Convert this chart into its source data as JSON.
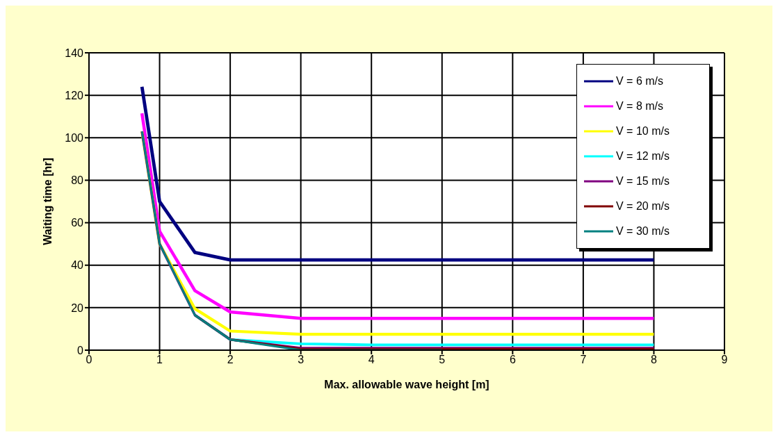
{
  "chart_data": {
    "type": "line",
    "xlabel": "Max. allowable wave height [m]",
    "ylabel": "Waiting time [hr]",
    "x": [
      0.75,
      1,
      1.5,
      2,
      3,
      4,
      5,
      6,
      7,
      8
    ],
    "series": [
      {
        "name": "V = 6 m/s",
        "color": "#000080",
        "values": [
          124,
          70,
          46,
          42.5,
          42.5,
          42.5,
          42.5,
          42.5,
          42.5,
          42.5
        ]
      },
      {
        "name": "V = 8 m/s",
        "color": "#ff00ff",
        "values": [
          111.5,
          56,
          28,
          18,
          15,
          15,
          15,
          15,
          15,
          15
        ]
      },
      {
        "name": "V = 10 m/s",
        "color": "#ffff00",
        "values": [
          103,
          50,
          19.5,
          9,
          7.5,
          7.5,
          7.5,
          7.5,
          7.5,
          7.5
        ]
      },
      {
        "name": "V = 12 m/s",
        "color": "#00ffff",
        "values": [
          null,
          null,
          16.5,
          5,
          3,
          2.5,
          2.5,
          2.5,
          2.5,
          2.5
        ]
      },
      {
        "name": "V = 15 m/s",
        "color": "#800080",
        "values": [
          103,
          50,
          16.5,
          5,
          1,
          1,
          1,
          1,
          1,
          1
        ]
      },
      {
        "name": "V = 20 m/s",
        "color": "#800000",
        "values": [
          null,
          null,
          16.5,
          5,
          0.5,
          0.5,
          0.5,
          0.5,
          0.5,
          0.5
        ]
      },
      {
        "name": "V = 30 m/s",
        "color": "#008080",
        "values": [
          103,
          50,
          16.5,
          5,
          0,
          0,
          0,
          null,
          null,
          null
        ]
      }
    ],
    "xlim": [
      0,
      9
    ],
    "xticks": [
      0,
      1,
      2,
      3,
      4,
      5,
      6,
      7,
      8,
      9
    ],
    "ylim": [
      0,
      140
    ],
    "yticks": [
      0,
      20,
      40,
      60,
      80,
      100,
      120,
      140
    ],
    "grid": true,
    "legend": "top right",
    "marker": "none",
    "line_style": "solid"
  }
}
